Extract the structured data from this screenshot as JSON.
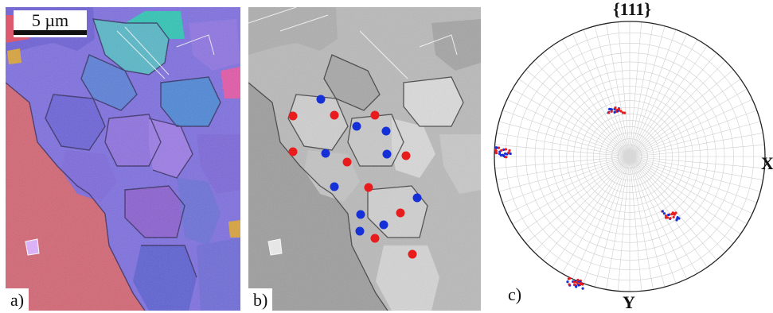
{
  "panel_a": {
    "label": "a)",
    "scale_bar": "5 µm"
  },
  "panel_b": {
    "label": "b)"
  },
  "panel_c": {
    "label": "c)",
    "title": "{111}",
    "axis_x": "X",
    "axis_y": "Y",
    "marker_colors": {
      "red": "#e81c1c",
      "blue": "#1530d6"
    }
  }
}
